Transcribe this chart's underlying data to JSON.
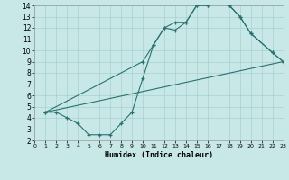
{
  "xlabel": "Humidex (Indice chaleur)",
  "bg_color": "#c8e8e8",
  "line_color": "#2a7070",
  "grid_color": "#a8d0d0",
  "xlim": [
    0,
    23
  ],
  "ylim": [
    2,
    14
  ],
  "xticks": [
    0,
    1,
    2,
    3,
    4,
    5,
    6,
    7,
    8,
    9,
    10,
    11,
    12,
    13,
    14,
    15,
    16,
    17,
    18,
    19,
    20,
    21,
    22,
    23
  ],
  "yticks": [
    2,
    3,
    4,
    5,
    6,
    7,
    8,
    9,
    10,
    11,
    12,
    13,
    14
  ],
  "curve1_x": [
    1,
    2,
    3,
    4,
    5,
    6,
    7,
    8,
    9,
    10,
    11,
    12,
    13,
    14,
    15,
    16,
    17,
    18,
    19,
    20,
    22,
    23
  ],
  "curve1_y": [
    4.5,
    4.5,
    4.0,
    3.5,
    2.5,
    2.5,
    2.5,
    3.5,
    4.5,
    7.5,
    10.5,
    12.0,
    11.8,
    12.5,
    14.0,
    14.0,
    14.2,
    14.0,
    13.0,
    11.5,
    9.8,
    9.0
  ],
  "curve2_x": [
    1,
    10,
    11,
    12,
    13,
    14,
    15,
    16,
    17,
    18,
    19,
    20,
    22,
    23
  ],
  "curve2_y": [
    4.5,
    9.0,
    10.5,
    12.0,
    12.5,
    12.5,
    14.0,
    14.0,
    14.2,
    14.0,
    13.0,
    11.5,
    9.8,
    9.0
  ],
  "line3_x": [
    1,
    23
  ],
  "line3_y": [
    4.5,
    9.0
  ]
}
